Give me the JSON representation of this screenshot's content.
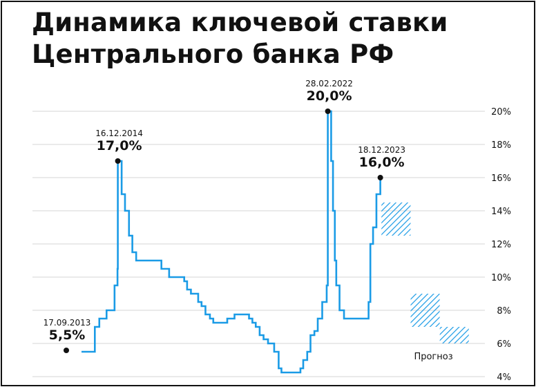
{
  "title_lines": [
    "Динамика ключевой ставки",
    "Центрального банка РФ"
  ],
  "colors": {
    "line": "#1a9be6",
    "hatch": "#1a9be6",
    "grid": "#d4d4d4",
    "text": "#111111"
  },
  "chart_data": {
    "type": "line",
    "title": "Динамика ключевой ставки Центрального банка РФ",
    "xlabel": "",
    "ylabel": "",
    "ylim": [
      4,
      20
    ],
    "y_ticks": [
      {
        "value": 4,
        "label": "4%"
      },
      {
        "value": 6,
        "label": "6%"
      },
      {
        "value": 8,
        "label": "8%"
      },
      {
        "value": 10,
        "label": "10%"
      },
      {
        "value": 12,
        "label": "12%"
      },
      {
        "value": 14,
        "label": "14%"
      },
      {
        "value": 16,
        "label": "16%"
      },
      {
        "value": 18,
        "label": "18%"
      },
      {
        "value": 20,
        "label": "20%"
      }
    ],
    "grid": true,
    "series": [
      {
        "points": [
          [
            "2013-09-17",
            5.5
          ],
          [
            "2014-03-03",
            7.0
          ],
          [
            "2014-04-28",
            7.5
          ],
          [
            "2014-07-28",
            8.0
          ],
          [
            "2014-11-05",
            9.5
          ],
          [
            "2014-12-12",
            10.5
          ],
          [
            "2014-12-16",
            17.0
          ],
          [
            "2015-02-02",
            15.0
          ],
          [
            "2015-03-16",
            14.0
          ],
          [
            "2015-05-05",
            12.5
          ],
          [
            "2015-06-16",
            11.5
          ],
          [
            "2015-08-03",
            11.0
          ],
          [
            "2016-06-14",
            10.5
          ],
          [
            "2016-09-19",
            10.0
          ],
          [
            "2017-03-27",
            9.75
          ],
          [
            "2017-05-02",
            9.25
          ],
          [
            "2017-06-19",
            9.0
          ],
          [
            "2017-09-18",
            8.5
          ],
          [
            "2017-10-30",
            8.25
          ],
          [
            "2017-12-18",
            7.75
          ],
          [
            "2018-02-12",
            7.5
          ],
          [
            "2018-03-26",
            7.25
          ],
          [
            "2018-09-17",
            7.5
          ],
          [
            "2018-12-17",
            7.75
          ],
          [
            "2019-06-17",
            7.5
          ],
          [
            "2019-07-29",
            7.25
          ],
          [
            "2019-09-09",
            7.0
          ],
          [
            "2019-10-28",
            6.5
          ],
          [
            "2019-12-16",
            6.25
          ],
          [
            "2020-02-10",
            6.0
          ],
          [
            "2020-04-27",
            5.5
          ],
          [
            "2020-06-22",
            4.5
          ],
          [
            "2020-07-27",
            4.25
          ],
          [
            "2021-03-22",
            4.5
          ],
          [
            "2021-04-26",
            5.0
          ],
          [
            "2021-06-15",
            5.5
          ],
          [
            "2021-07-26",
            6.5
          ],
          [
            "2021-09-13",
            6.75
          ],
          [
            "2021-10-25",
            7.5
          ],
          [
            "2021-12-20",
            8.5
          ],
          [
            "2022-02-14",
            9.5
          ],
          [
            "2022-02-28",
            20.0
          ],
          [
            "2022-04-11",
            17.0
          ],
          [
            "2022-05-04",
            14.0
          ],
          [
            "2022-05-27",
            11.0
          ],
          [
            "2022-06-14",
            9.5
          ],
          [
            "2022-07-25",
            8.0
          ],
          [
            "2022-09-19",
            7.5
          ],
          [
            "2023-07-24",
            8.5
          ],
          [
            "2023-08-15",
            12.0
          ],
          [
            "2023-09-18",
            13.0
          ],
          [
            "2023-10-30",
            15.0
          ],
          [
            "2023-12-18",
            16.0
          ]
        ]
      }
    ],
    "forecast_label": "Прогноз",
    "forecast_ranges": [
      {
        "from": "2024-01-01",
        "to": "2024-12-31",
        "low": 12.5,
        "high": 14.5
      },
      {
        "from": "2025-01-01",
        "to": "2025-12-31",
        "low": 7.0,
        "high": 9.0
      },
      {
        "from": "2026-01-01",
        "to": "2026-12-31",
        "low": 6.0,
        "high": 7.0
      }
    ],
    "annotations": [
      {
        "date": "2013-09-17",
        "value": 5.5,
        "date_label": "17.09.2013",
        "value_label": "5,5%"
      },
      {
        "date": "2014-12-16",
        "value": 17.0,
        "date_label": "16.12.2014",
        "value_label": "17,0%"
      },
      {
        "date": "2022-02-28",
        "value": 20.0,
        "date_label": "28.02.2022",
        "value_label": "20,0%"
      },
      {
        "date": "2023-12-18",
        "value": 16.0,
        "date_label": "18.12.2023",
        "value_label": "16,0%"
      }
    ]
  }
}
